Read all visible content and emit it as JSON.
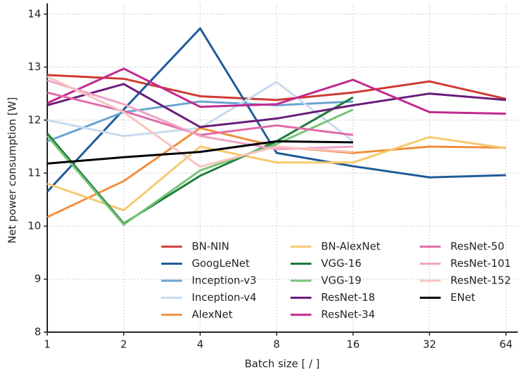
{
  "chart_data": {
    "type": "line",
    "x_label": "Batch size [ / ]",
    "y_label": "Net power consumption [W]",
    "categories": [
      "1",
      "2",
      "4",
      "8",
      "16",
      "32",
      "64"
    ],
    "ylim": [
      8,
      14.2
    ],
    "yticks": [
      8,
      9,
      10,
      11,
      12,
      13,
      14
    ],
    "grid": true,
    "legend": "lower right",
    "series": [
      {
        "name": "BN-NIN",
        "color": "#d03a32",
        "values": [
          12.85,
          12.78,
          12.45,
          12.38,
          12.52,
          12.73,
          12.4
        ]
      },
      {
        "name": "GoogLeNet",
        "color": "#1f5a99",
        "values": [
          10.65,
          12.2,
          13.73,
          11.38,
          11.13,
          10.92,
          10.96
        ]
      },
      {
        "name": "Inception-v3",
        "color": "#6aa4d2",
        "values": [
          11.6,
          12.15,
          12.35,
          12.28,
          12.35,
          null,
          null
        ]
      },
      {
        "name": "Inception-v4",
        "color": "#c6dbef",
        "values": [
          12.0,
          11.7,
          11.85,
          12.72,
          11.6,
          null,
          null
        ]
      },
      {
        "name": "AlexNet",
        "color": "#f28e3b",
        "values": [
          10.17,
          10.85,
          11.85,
          11.5,
          11.38,
          11.5,
          11.48
        ]
      },
      {
        "name": "BN-AlexNet",
        "color": "#f6c96d",
        "values": [
          10.8,
          10.3,
          11.5,
          11.2,
          11.2,
          11.68,
          11.47
        ]
      },
      {
        "name": "VGG-16",
        "color": "#1b7a3a",
        "values": [
          11.75,
          10.05,
          10.95,
          11.6,
          12.43,
          null,
          null
        ]
      },
      {
        "name": "VGG-19",
        "color": "#74c476",
        "values": [
          11.7,
          10.03,
          11.05,
          11.55,
          12.2,
          null,
          null
        ]
      },
      {
        "name": "ResNet-18",
        "color": "#6a1b7a",
        "values": [
          12.28,
          12.68,
          11.87,
          12.03,
          12.28,
          12.5,
          12.38
        ]
      },
      {
        "name": "ResNet-34",
        "color": "#c2288f",
        "values": [
          12.32,
          12.97,
          12.25,
          12.3,
          12.76,
          12.15,
          12.12
        ]
      },
      {
        "name": "ResNet-50",
        "color": "#e06aa8",
        "values": [
          12.52,
          12.17,
          11.72,
          11.9,
          11.72,
          null,
          null
        ]
      },
      {
        "name": "ResNet-101",
        "color": "#f0a3c4",
        "values": [
          12.75,
          12.3,
          11.7,
          11.45,
          11.5,
          null,
          null
        ]
      },
      {
        "name": "ResNet-152",
        "color": "#f8c4c0",
        "values": [
          12.82,
          12.15,
          11.12,
          11.5,
          11.4,
          null,
          null
        ]
      },
      {
        "name": "ENet",
        "color": "#000000",
        "values": [
          11.18,
          11.3,
          11.4,
          11.6,
          11.58,
          null,
          null
        ]
      }
    ]
  }
}
